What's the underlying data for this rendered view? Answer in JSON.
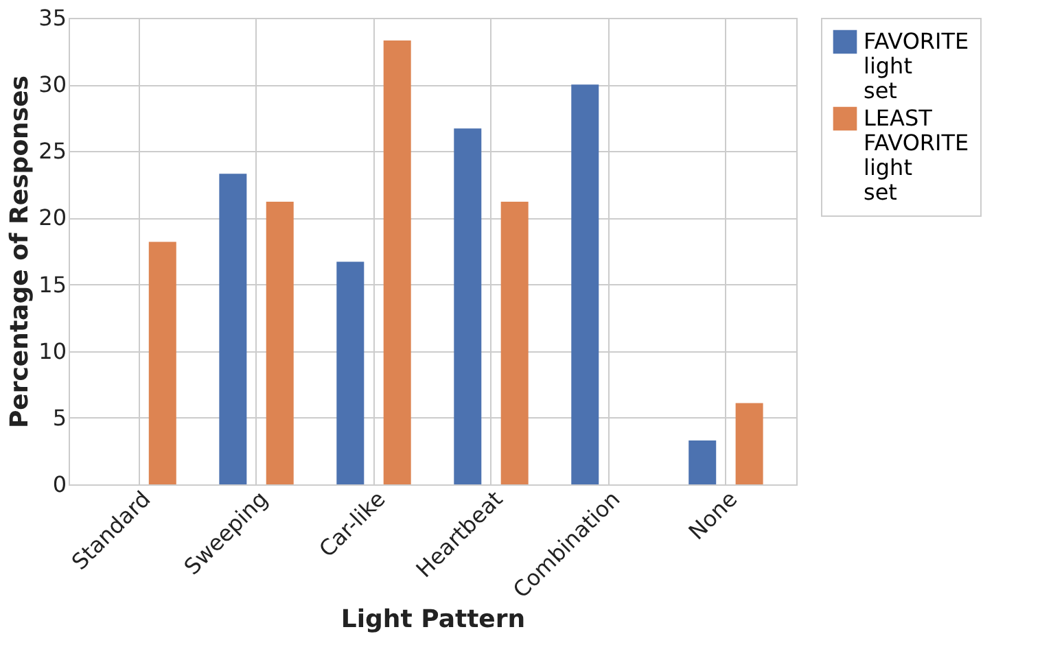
{
  "chart_data": {
    "type": "bar",
    "xlabel": "Light Pattern",
    "ylabel": "Percentage of Responses",
    "categories": [
      "Standard",
      "Sweeping",
      "Car-like",
      "Heartbeat",
      "Combination",
      "None"
    ],
    "series": [
      {
        "name": "FAVORITE light set",
        "color": "#4c72b0",
        "values": [
          0,
          23.3,
          16.7,
          26.7,
          30,
          3.3
        ]
      },
      {
        "name": "LEAST FAVORITE light set",
        "color": "#dd8452",
        "values": [
          18.2,
          21.2,
          33.3,
          21.2,
          0,
          6.1
        ]
      }
    ],
    "ylim": [
      0,
      35
    ],
    "yticks": [
      0,
      5,
      10,
      15,
      20,
      25,
      30,
      35
    ],
    "grid": true,
    "legend": "right"
  }
}
